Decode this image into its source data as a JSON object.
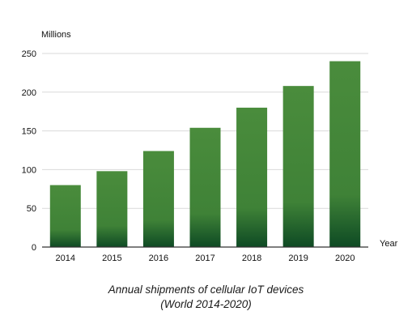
{
  "chart_data": {
    "type": "bar",
    "categories": [
      "2014",
      "2015",
      "2016",
      "2017",
      "2018",
      "2019",
      "2020"
    ],
    "values": [
      80,
      98,
      124,
      154,
      180,
      208,
      240
    ],
    "ylabel": "Millions",
    "xlabel": "Year",
    "ylim": [
      0,
      250
    ],
    "yticks": [
      0,
      50,
      100,
      150,
      200,
      250
    ],
    "grid": true,
    "legend": "none",
    "title_line1": "Annual shipments of cellular IoT devices",
    "title_line2": "(World 2014-2020)",
    "colors": {
      "bar_top": "#4a8c3c",
      "bar_mid": "#3f8237",
      "bar_bottom": "#0e4a24",
      "grid": "#d9d9d9",
      "axis": "#333333"
    }
  }
}
